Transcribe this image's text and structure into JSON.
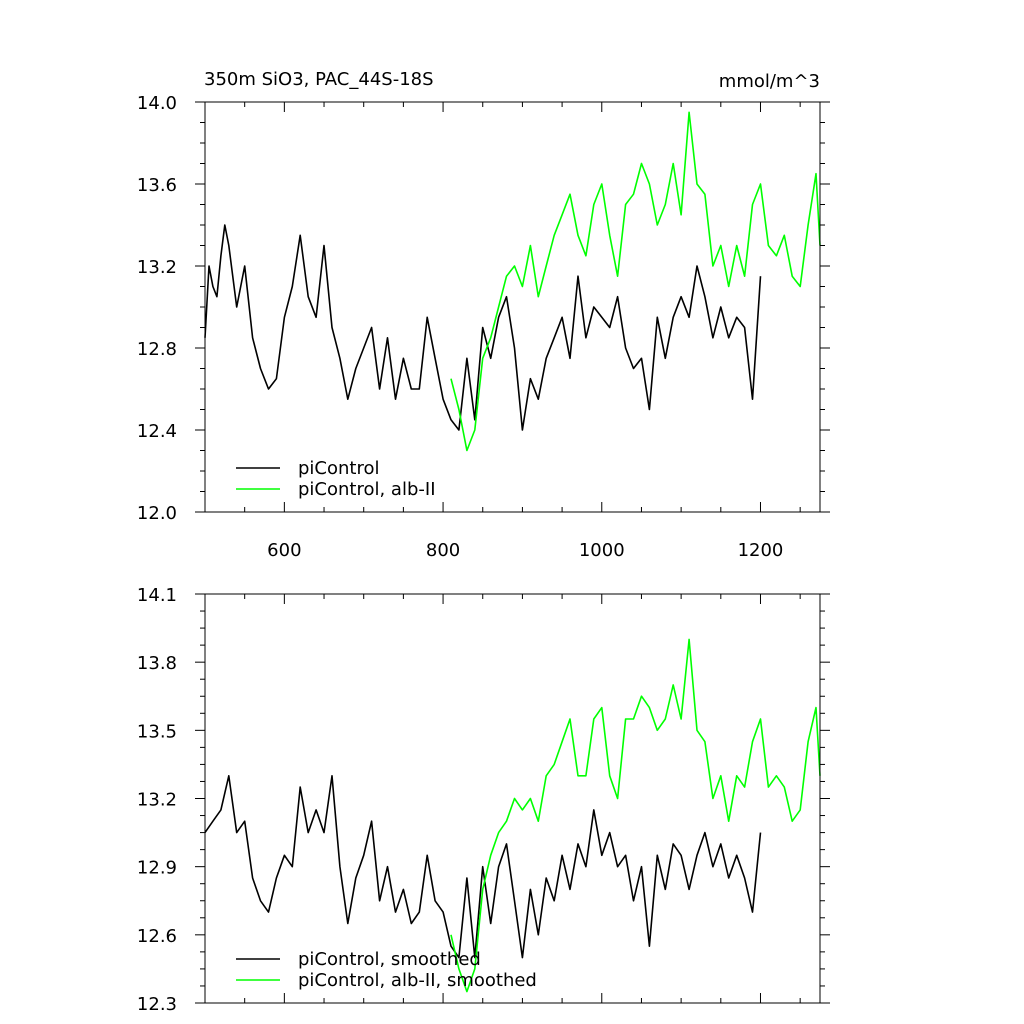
{
  "title_left": "350m SiO3, PAC_44S-18S",
  "title_right": "mmol/m^3",
  "colors": {
    "control": "#000000",
    "albII": "#00ff00",
    "axis": "#000000",
    "background": "#ffffff"
  },
  "chart_data": [
    {
      "type": "line",
      "xlim": [
        500,
        1275
      ],
      "ylim": [
        12.0,
        14.0
      ],
      "x_ticks": [
        600,
        800,
        1000,
        1200
      ],
      "x_tick_labels": [
        "600",
        "800",
        "1000",
        "1200"
      ],
      "y_ticks": [
        12.0,
        12.4,
        12.8,
        13.2,
        13.6,
        14.0
      ],
      "y_tick_labels": [
        "12.0",
        "12.4",
        "12.8",
        "13.2",
        "13.6",
        "14.0"
      ],
      "grid": false,
      "legend_position": "bottom-left",
      "series": [
        {
          "name": "piControl",
          "color": "#000000",
          "x": [
            500,
            505,
            510,
            515,
            520,
            525,
            530,
            540,
            550,
            560,
            570,
            580,
            590,
            600,
            610,
            620,
            630,
            640,
            650,
            660,
            670,
            680,
            690,
            700,
            710,
            720,
            730,
            740,
            750,
            760,
            770,
            780,
            790,
            800,
            810,
            820,
            830,
            840,
            850,
            860,
            870,
            880,
            890,
            900,
            910,
            920,
            930,
            940,
            950,
            960,
            970,
            980,
            990,
            1000,
            1010,
            1020,
            1030,
            1040,
            1050,
            1060,
            1070,
            1080,
            1090,
            1100,
            1110,
            1120,
            1130,
            1140,
            1150,
            1160,
            1170,
            1180,
            1190,
            1200
          ],
          "y": [
            12.85,
            13.2,
            13.1,
            13.05,
            13.25,
            13.4,
            13.3,
            13.0,
            13.2,
            12.85,
            12.7,
            12.6,
            12.65,
            12.95,
            13.1,
            13.35,
            13.05,
            12.95,
            13.3,
            12.9,
            12.75,
            12.55,
            12.7,
            12.8,
            12.9,
            12.6,
            12.85,
            12.55,
            12.75,
            12.6,
            12.6,
            12.95,
            12.75,
            12.55,
            12.45,
            12.4,
            12.75,
            12.45,
            12.9,
            12.75,
            12.95,
            13.05,
            12.8,
            12.4,
            12.65,
            12.55,
            12.75,
            12.85,
            12.95,
            12.75,
            13.15,
            12.85,
            13.0,
            12.95,
            12.9,
            13.05,
            12.8,
            12.7,
            12.75,
            12.5,
            12.95,
            12.75,
            12.95,
            13.05,
            12.95,
            13.2,
            13.05,
            12.85,
            13.0,
            12.85,
            12.95,
            12.9,
            12.55,
            13.15
          ]
        },
        {
          "name": "piControl, alb-II",
          "color": "#00ff00",
          "x": [
            810,
            820,
            830,
            840,
            850,
            860,
            870,
            880,
            890,
            900,
            910,
            920,
            930,
            940,
            950,
            960,
            970,
            980,
            990,
            1000,
            1010,
            1020,
            1030,
            1040,
            1050,
            1060,
            1070,
            1080,
            1090,
            1100,
            1110,
            1120,
            1130,
            1140,
            1150,
            1160,
            1170,
            1180,
            1190,
            1200,
            1210,
            1220,
            1230,
            1240,
            1250,
            1260,
            1270,
            1275
          ],
          "y": [
            12.65,
            12.5,
            12.3,
            12.4,
            12.75,
            12.85,
            13.0,
            13.15,
            13.2,
            13.1,
            13.3,
            13.05,
            13.2,
            13.35,
            13.45,
            13.55,
            13.35,
            13.25,
            13.5,
            13.6,
            13.35,
            13.15,
            13.5,
            13.55,
            13.7,
            13.6,
            13.4,
            13.5,
            13.7,
            13.45,
            13.95,
            13.6,
            13.55,
            13.2,
            13.3,
            13.1,
            13.3,
            13.15,
            13.5,
            13.6,
            13.3,
            13.25,
            13.35,
            13.15,
            13.1,
            13.4,
            13.65,
            13.3
          ]
        }
      ]
    },
    {
      "type": "line",
      "xlim": [
        500,
        1275
      ],
      "ylim": [
        12.3,
        14.1
      ],
      "x_ticks": [
        600,
        800,
        1000,
        1200
      ],
      "y_ticks": [
        12.3,
        12.6,
        12.9,
        13.2,
        13.5,
        13.8,
        14.1
      ],
      "y_tick_labels": [
        "12.3",
        "12.6",
        "12.9",
        "13.2",
        "13.5",
        "13.8",
        "14.1"
      ],
      "grid": false,
      "legend_position": "bottom-left",
      "series": [
        {
          "name": "piControl, smoothed",
          "color": "#000000",
          "x": [
            500,
            510,
            520,
            530,
            540,
            550,
            560,
            570,
            580,
            590,
            600,
            610,
            620,
            630,
            640,
            650,
            660,
            670,
            680,
            690,
            700,
            710,
            720,
            730,
            740,
            750,
            760,
            770,
            780,
            790,
            800,
            810,
            820,
            830,
            840,
            850,
            860,
            870,
            880,
            890,
            900,
            910,
            920,
            930,
            940,
            950,
            960,
            970,
            980,
            990,
            1000,
            1010,
            1020,
            1030,
            1040,
            1050,
            1060,
            1070,
            1080,
            1090,
            1100,
            1110,
            1120,
            1130,
            1140,
            1150,
            1160,
            1170,
            1180,
            1190,
            1200
          ],
          "y": [
            13.05,
            13.1,
            13.15,
            13.3,
            13.05,
            13.1,
            12.85,
            12.75,
            12.7,
            12.85,
            12.95,
            12.9,
            13.25,
            13.05,
            13.15,
            13.05,
            13.3,
            12.9,
            12.65,
            12.85,
            12.95,
            13.1,
            12.75,
            12.9,
            12.7,
            12.8,
            12.65,
            12.7,
            12.95,
            12.75,
            12.7,
            12.55,
            12.5,
            12.85,
            12.5,
            12.9,
            12.65,
            12.9,
            13.0,
            12.75,
            12.5,
            12.8,
            12.6,
            12.85,
            12.75,
            12.95,
            12.8,
            13.0,
            12.9,
            13.15,
            12.95,
            13.05,
            12.9,
            12.95,
            12.75,
            12.9,
            12.55,
            12.95,
            12.8,
            13.0,
            12.95,
            12.8,
            12.95,
            13.05,
            12.9,
            13.0,
            12.85,
            12.95,
            12.85,
            12.7,
            13.05
          ]
        },
        {
          "name": "piControl, alb-II, smoothed",
          "color": "#00ff00",
          "x": [
            810,
            820,
            830,
            840,
            850,
            860,
            870,
            880,
            890,
            900,
            910,
            920,
            930,
            940,
            950,
            960,
            970,
            980,
            990,
            1000,
            1010,
            1020,
            1030,
            1040,
            1050,
            1060,
            1070,
            1080,
            1090,
            1100,
            1110,
            1120,
            1130,
            1140,
            1150,
            1160,
            1170,
            1180,
            1190,
            1200,
            1210,
            1220,
            1230,
            1240,
            1250,
            1260,
            1270,
            1275
          ],
          "y": [
            12.6,
            12.45,
            12.35,
            12.45,
            12.8,
            12.95,
            13.05,
            13.1,
            13.2,
            13.15,
            13.2,
            13.1,
            13.3,
            13.35,
            13.45,
            13.55,
            13.3,
            13.3,
            13.55,
            13.6,
            13.3,
            13.2,
            13.55,
            13.55,
            13.65,
            13.6,
            13.5,
            13.55,
            13.7,
            13.55,
            13.9,
            13.5,
            13.45,
            13.2,
            13.3,
            13.1,
            13.3,
            13.25,
            13.45,
            13.55,
            13.25,
            13.3,
            13.25,
            13.1,
            13.15,
            13.45,
            13.6,
            13.3
          ]
        }
      ]
    }
  ]
}
